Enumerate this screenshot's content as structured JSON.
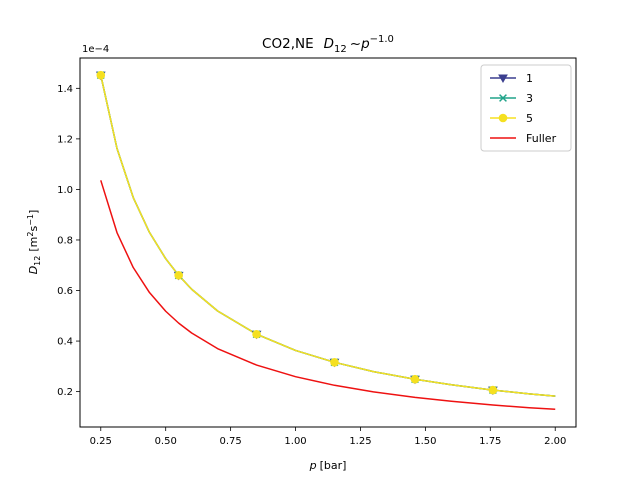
{
  "chart_data": {
    "type": "line",
    "title": {
      "prefix": "CO2,NE",
      "var": "D",
      "var_sub": "12",
      "tilde": "~",
      "p": "p",
      "exponent": "−1.0"
    },
    "xlabel": {
      "var": "p",
      "unit": "[bar]"
    },
    "ylabel": {
      "var": "D",
      "var_sub": "12",
      "open": "[m",
      "sq": "2",
      "s": "s",
      "inv": "−1",
      "close": "]"
    },
    "y_offset_label": "1e−4",
    "xlim": [
      0.17,
      2.08
    ],
    "ylim": [
      0.06,
      1.52
    ],
    "x_ticks": [
      0.25,
      0.5,
      0.75,
      1.0,
      1.25,
      1.5,
      1.75,
      2.0
    ],
    "x_tick_labels": [
      "0.25",
      "0.50",
      "0.75",
      "1.00",
      "1.25",
      "1.50",
      "1.75",
      "2.00"
    ],
    "y_ticks": [
      0.2,
      0.4,
      0.6,
      0.8,
      1.0,
      1.2,
      1.4
    ],
    "y_tick_labels": [
      "0.2",
      "0.4",
      "0.6",
      "0.8",
      "1.0",
      "1.2",
      "1.4"
    ],
    "grid": false,
    "legend_position": "top-right",
    "x": [
      0.25,
      0.3125,
      0.375,
      0.4375,
      0.5,
      0.55,
      0.6,
      0.7,
      0.85,
      1.0,
      1.15,
      1.3,
      1.46,
      1.6,
      1.76,
      1.9,
      2.0
    ],
    "series": [
      {
        "name": "1",
        "color": "#3b3f8f",
        "marker": "triangle-down",
        "values": [
          1.452,
          1.162,
          0.968,
          0.83,
          0.726,
          0.66,
          0.605,
          0.519,
          0.427,
          0.363,
          0.316,
          0.279,
          0.249,
          0.227,
          0.206,
          0.191,
          0.182
        ],
        "marker_x": [
          0.25,
          0.55,
          0.85,
          1.15,
          1.46,
          1.76
        ],
        "marker_y": [
          1.452,
          0.66,
          0.427,
          0.316,
          0.249,
          0.206
        ]
      },
      {
        "name": "3",
        "color": "#21a48a",
        "marker": "x",
        "values": [
          1.452,
          1.162,
          0.968,
          0.83,
          0.726,
          0.66,
          0.605,
          0.519,
          0.427,
          0.363,
          0.316,
          0.279,
          0.249,
          0.227,
          0.206,
          0.191,
          0.182
        ],
        "marker_x": [
          0.25,
          0.55,
          0.85,
          1.15,
          1.46,
          1.76
        ],
        "marker_y": [
          1.452,
          0.66,
          0.427,
          0.316,
          0.249,
          0.206
        ]
      },
      {
        "name": "5",
        "color": "#f5e020",
        "marker": "circle",
        "values": [
          1.452,
          1.162,
          0.968,
          0.83,
          0.726,
          0.66,
          0.605,
          0.519,
          0.427,
          0.363,
          0.316,
          0.279,
          0.249,
          0.227,
          0.206,
          0.191,
          0.182
        ],
        "marker_x": [
          0.25,
          0.55,
          0.85,
          1.15,
          1.46,
          1.76
        ],
        "marker_y": [
          1.452,
          0.66,
          0.427,
          0.316,
          0.249,
          0.206
        ]
      },
      {
        "name": "Fuller",
        "color": "#ee1111",
        "marker": "none",
        "values": [
          1.036,
          0.829,
          0.691,
          0.592,
          0.518,
          0.471,
          0.432,
          0.37,
          0.305,
          0.259,
          0.225,
          0.199,
          0.177,
          0.162,
          0.147,
          0.136,
          0.13
        ]
      }
    ]
  }
}
